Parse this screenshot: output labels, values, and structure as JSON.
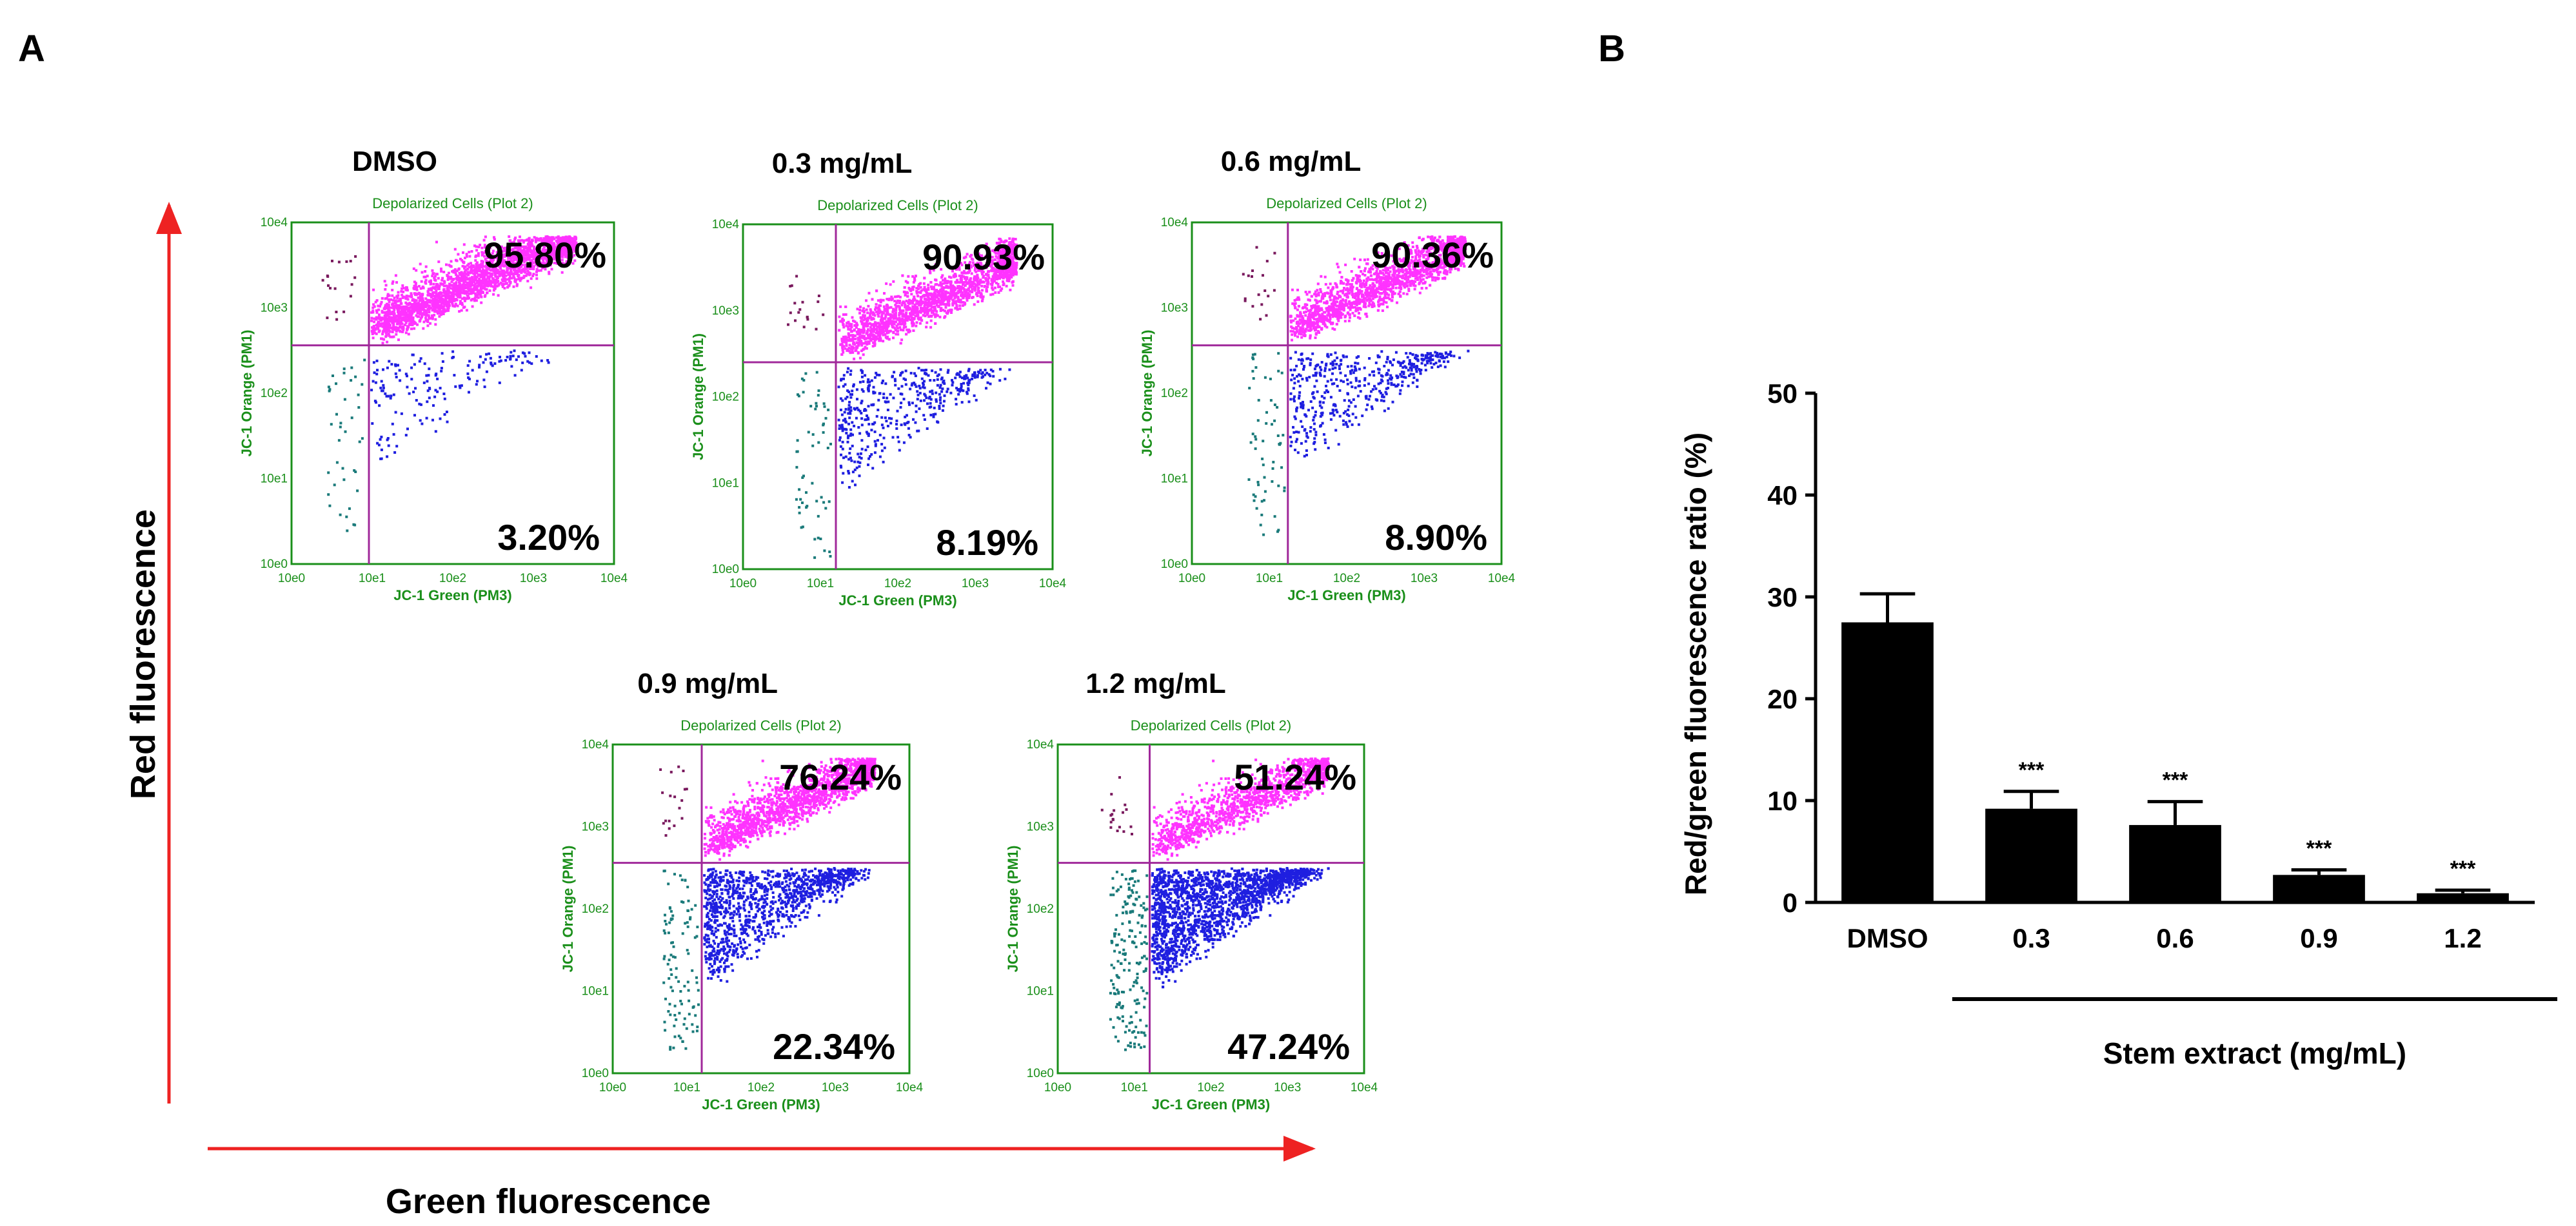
{
  "panel_a": {
    "letter": "A",
    "x_axis_label": "Green fluorescence",
    "y_axis_label": "Red fluorescence",
    "plot_title": "Depolarized Cells (Plot 2)",
    "plot_xlabel": "JC-1 Green (PM3)",
    "plot_ylabel": "JC-1 Orange (PM1)",
    "tick_labels": [
      "10e0",
      "10e1",
      "10e2",
      "10e3",
      "10e4"
    ],
    "plots": [
      {
        "condition": "DMSO",
        "upper_right": "95.80%",
        "lower_right": "3.20%"
      },
      {
        "condition": "0.3 mg/mL",
        "upper_right": "90.93%",
        "lower_right": "8.19%"
      },
      {
        "condition": "0.6 mg/mL",
        "upper_right": "90.36%",
        "lower_right": "8.90%"
      },
      {
        "condition": "0.9 mg/mL",
        "upper_right": "76.24%",
        "lower_right": "22.34%"
      },
      {
        "condition": "1.2 mg/mL",
        "upper_right": "51.24%",
        "lower_right": "47.24%"
      }
    ]
  },
  "panel_b": {
    "letter": "B",
    "group_label": "Stem extract (mg/mL)"
  },
  "colors": {
    "upper_right_dots": "#ff33ff",
    "lower_right_dots": "#1f1fe0",
    "upper_left_dots": "#7a1a5e",
    "lower_left_dots": "#1a7a7a",
    "frame_green": "#1a8f1a",
    "gate_purple": "#a0289a",
    "arrow_red": "#ee2222"
  },
  "chart_data": {
    "type": "bar",
    "categories": [
      "DMSO",
      "0.3",
      "0.6",
      "0.9",
      "1.2"
    ],
    "values": [
      27.5,
      9.2,
      7.6,
      2.7,
      0.9
    ],
    "errors": [
      2.8,
      1.7,
      2.3,
      0.5,
      0.3
    ],
    "significance": [
      "",
      "***",
      "***",
      "***",
      "***"
    ],
    "title": "",
    "xlabel": "Stem extract (mg/mL)",
    "ylabel": "Red/green fluorescence ratio (%)",
    "ylim": [
      0,
      50
    ],
    "yticks": [
      0,
      10,
      20,
      30,
      40,
      50
    ]
  }
}
